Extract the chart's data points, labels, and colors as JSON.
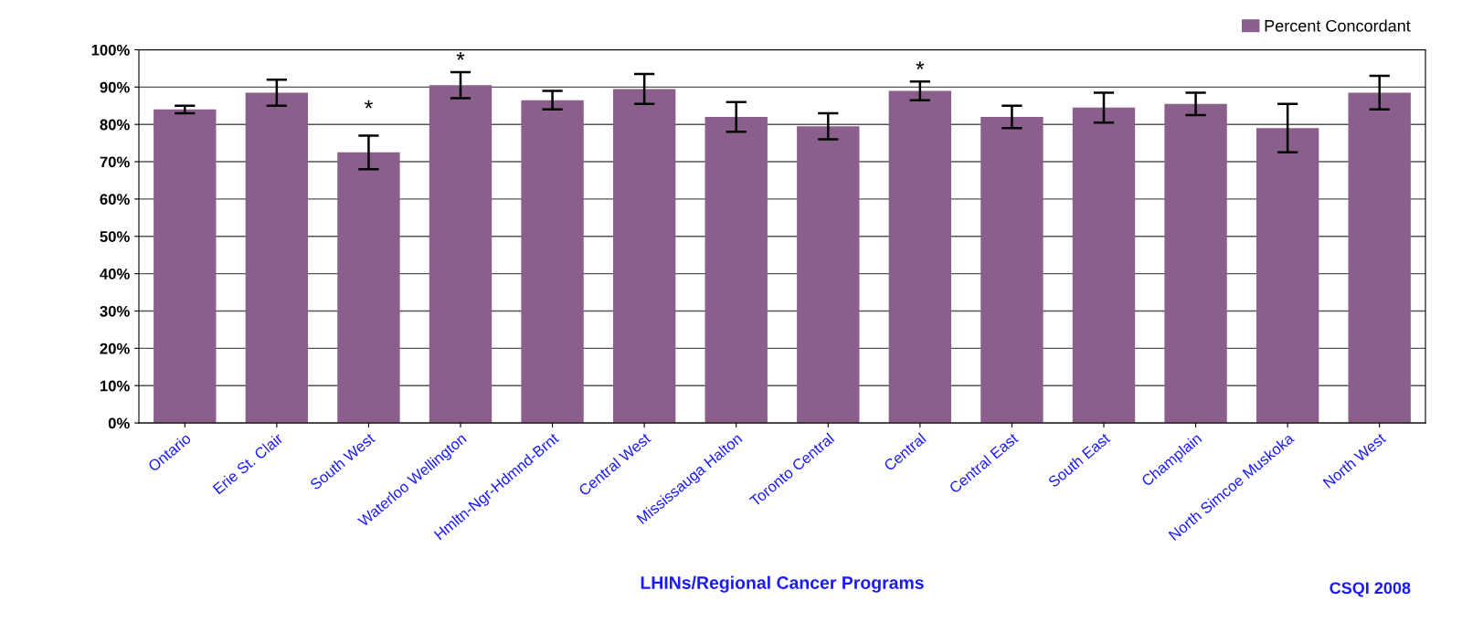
{
  "chart_data": {
    "type": "bar",
    "xlabel": "LHINs/Regional Cancer Programs",
    "categories": [
      "Ontario",
      "Erie St. Clair",
      "South West",
      "Waterloo Wellington",
      "Hmltn-Ngr-Hdmnd-Brnt",
      "Central West",
      "Mississauga Halton",
      "Toronto Central",
      "Central",
      "Central East",
      "South East",
      "Champlain",
      "North Simcoe Muskoka",
      "North West"
    ],
    "series": [
      {
        "name": "Percent Concordant",
        "color": "#8b5f8b",
        "values": [
          84,
          88.5,
          72.5,
          90.5,
          86.5,
          89.5,
          82,
          79.5,
          89,
          82,
          84.5,
          85.5,
          79,
          88.5
        ],
        "errors": [
          1,
          3.5,
          4.5,
          3.5,
          2.5,
          4,
          4,
          3.5,
          2.5,
          3,
          4,
          3,
          6.5,
          4.5
        ]
      }
    ],
    "ylim": [
      0,
      100
    ],
    "yticks": [
      {
        "value": 0,
        "label": "0%"
      },
      {
        "value": 10,
        "label": "10%"
      },
      {
        "value": 20,
        "label": "20%"
      },
      {
        "value": 30,
        "label": "30%"
      },
      {
        "value": 40,
        "label": "40%"
      },
      {
        "value": 50,
        "label": "50%"
      },
      {
        "value": 60,
        "label": "60%"
      },
      {
        "value": 70,
        "label": "70%"
      },
      {
        "value": 80,
        "label": "80%"
      },
      {
        "value": 90,
        "label": "90%"
      },
      {
        "value": 100,
        "label": "100%"
      }
    ],
    "grid": "y",
    "legend": "top right",
    "annotations": [
      {
        "text": "*",
        "x": "South West",
        "y": 77
      },
      {
        "text": "*",
        "x": "Waterloo Wellington",
        "y": 94
      },
      {
        "text": "*",
        "x": "Central",
        "y": 91.5
      },
      "CSQI 2008"
    ]
  }
}
